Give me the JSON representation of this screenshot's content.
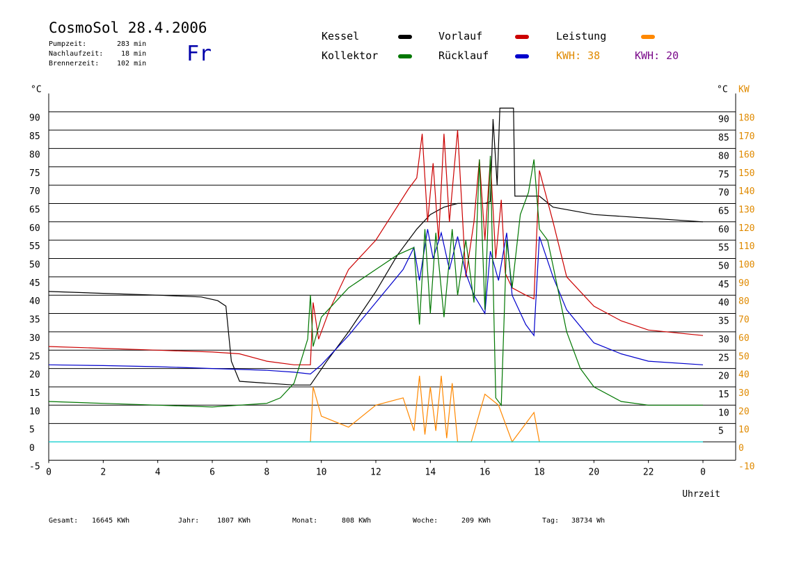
{
  "header": {
    "title": "CosmoSol 28.4.2006",
    "info": [
      {
        "label": "Pumpzeit:",
        "value": "283 min"
      },
      {
        "label": "Nachlaufzeit:",
        "value": "18 min"
      },
      {
        "label": "Brennerzeit:",
        "value": "102 min"
      }
    ],
    "day": "Fr"
  },
  "legend": {
    "kessel": "Kessel",
    "vorlauf": "Vorlauf",
    "leistung": "Leistung",
    "kollektor": "Kollektor",
    "ruecklauf": "Rücklauf",
    "kwh1_label": "KWH:",
    "kwh1_value": "38",
    "kwh2_label": "KWH:",
    "kwh2_value": "20"
  },
  "colors": {
    "kessel": "#000000",
    "vorlauf": "#cc0000",
    "ruecklauf": "#0000cc",
    "kollektor": "#007700",
    "leistung": "#ff8800",
    "kwh_orange": "#e08a00",
    "kwh_purple": "#7a0a8a",
    "pump": "#00cccc"
  },
  "footer": {
    "gesamt_label": "Gesamt:",
    "gesamt_value": "16645 KWh",
    "jahr_label": "Jahr:",
    "jahr_value": "1807 KWh",
    "monat_label": "Monat:",
    "monat_value": "808 KWh",
    "woche_label": "Woche:",
    "woche_value": "209 KWh",
    "tag_label": "Tag:",
    "tag_value": "38734 Wh"
  },
  "chart_data": {
    "type": "line",
    "xlabel": "Uhrzeit",
    "ylabel_left": "°C",
    "ylabel_right_c": "°C",
    "ylabel_right_kw": "KW",
    "xlim": [
      0,
      24
    ],
    "ylim_left": [
      -5,
      95
    ],
    "ylim_right": [
      -10,
      180
    ],
    "x_ticks": [
      "0",
      "2",
      "4",
      "6",
      "8",
      "10",
      "12",
      "14",
      "16",
      "18",
      "20",
      "22",
      "0"
    ],
    "y_ticks_left": [
      "-5",
      "0",
      "5",
      "10",
      "15",
      "20",
      "25",
      "30",
      "35",
      "40",
      "45",
      "50",
      "55",
      "60",
      "65",
      "70",
      "75",
      "80",
      "85",
      "90"
    ],
    "y_ticks_right_c": [
      "5",
      "10",
      "15",
      "20",
      "25",
      "30",
      "35",
      "40",
      "45",
      "50",
      "55",
      "60",
      "65",
      "70",
      "75",
      "80",
      "85",
      "90"
    ],
    "y_ticks_right_kw": [
      "-10",
      "0",
      "10",
      "20",
      "30",
      "40",
      "50",
      "60",
      "70",
      "80",
      "90",
      "100",
      "110",
      "120",
      "130",
      "140",
      "150",
      "160",
      "170",
      "180"
    ],
    "grid": "horizontal",
    "series": [
      {
        "name": "Kessel",
        "x": [
          0,
          2,
          4,
          5.6,
          6.2,
          6.5,
          6.7,
          7,
          8,
          9,
          9.6,
          10.2,
          11,
          12,
          12.8,
          13.5,
          14,
          14.5,
          15,
          16,
          16.2,
          16.3,
          16.45,
          16.55,
          17.05,
          17.1,
          18,
          18.5,
          20,
          22,
          24
        ],
        "y": [
          41,
          40.5,
          40,
          39.5,
          38.5,
          37,
          22,
          16.5,
          16,
          15.5,
          15.5,
          22,
          30,
          41,
          51,
          58,
          62,
          64,
          65,
          65,
          65.5,
          88,
          70,
          91,
          91,
          67,
          67,
          64,
          62,
          61,
          60
        ]
      },
      {
        "name": "Vorlauf",
        "x": [
          0,
          2,
          4,
          6,
          7,
          8,
          9,
          9.6,
          9.7,
          9.9,
          10.3,
          11,
          12,
          12.6,
          13.2,
          13.5,
          13.7,
          13.9,
          14.1,
          14.3,
          14.5,
          14.7,
          15,
          15.3,
          15.6,
          15.8,
          16,
          16.2,
          16.4,
          16.6,
          16.75,
          17,
          17.5,
          17.8,
          18,
          18.5,
          19,
          20,
          21,
          22,
          24
        ],
        "y": [
          26,
          25.5,
          25,
          24.5,
          24,
          22,
          21,
          21,
          38,
          28,
          36,
          47,
          55,
          62,
          69,
          72,
          84,
          60,
          76,
          55,
          84,
          60,
          85,
          45,
          60,
          77,
          55,
          77,
          50,
          66,
          46,
          42,
          40,
          39,
          74,
          60,
          45,
          37,
          33,
          30.5,
          29
        ]
      },
      {
        "name": "Rücklauf",
        "x": [
          0,
          2,
          4,
          6,
          8,
          9,
          9.6,
          10,
          11,
          12,
          13,
          13.4,
          13.6,
          13.9,
          14.1,
          14.4,
          14.7,
          15,
          15.3,
          15.6,
          16,
          16.2,
          16.5,
          16.8,
          17,
          17.5,
          17.8,
          18,
          18.5,
          19,
          20,
          21,
          22,
          24
        ],
        "y": [
          21,
          20.8,
          20.5,
          20,
          19.5,
          19,
          18.5,
          21,
          29,
          38,
          47,
          53,
          44,
          58,
          50,
          57,
          47,
          56,
          46,
          40,
          35,
          52,
          44,
          57,
          40,
          32,
          29,
          56,
          45,
          36,
          27,
          24,
          22,
          21
        ]
      },
      {
        "name": "Kollektor",
        "x": [
          0,
          2,
          4,
          6,
          7,
          8,
          8.5,
          9,
          9.5,
          9.6,
          9.7,
          10,
          11,
          12,
          12.8,
          13.4,
          13.6,
          13.8,
          14,
          14.2,
          14.5,
          14.8,
          15,
          15.3,
          15.6,
          15.8,
          16,
          16.2,
          16.4,
          16.6,
          16.8,
          17,
          17.3,
          17.6,
          17.8,
          18,
          18.3,
          18.5,
          19,
          19.5,
          20,
          21,
          22,
          24
        ],
        "y": [
          11,
          10.5,
          10,
          9.5,
          10,
          10.5,
          12,
          16,
          28,
          40,
          26,
          34,
          42,
          47,
          51,
          53,
          32,
          58,
          35,
          57,
          34,
          58,
          40,
          55,
          38,
          77,
          36,
          78,
          12,
          10,
          55,
          42,
          62,
          68,
          77,
          58,
          55,
          48,
          30,
          20,
          15,
          11,
          10,
          10
        ]
      },
      {
        "name": "Leistung",
        "x": [
          9.6,
          9.7,
          10,
          11,
          12,
          13,
          13.4,
          13.6,
          13.8,
          14,
          14.2,
          14.4,
          14.6,
          14.8,
          15,
          15.5,
          16,
          16.5,
          17,
          17.8,
          18
        ],
        "y": [
          0,
          15,
          7,
          4,
          10,
          12,
          3,
          18,
          2,
          15,
          3,
          18,
          1,
          16,
          0,
          0,
          13,
          10,
          0,
          8,
          0
        ]
      },
      {
        "name": "Pumpe",
        "x": [
          0,
          24
        ],
        "y": [
          0,
          0
        ]
      }
    ]
  }
}
